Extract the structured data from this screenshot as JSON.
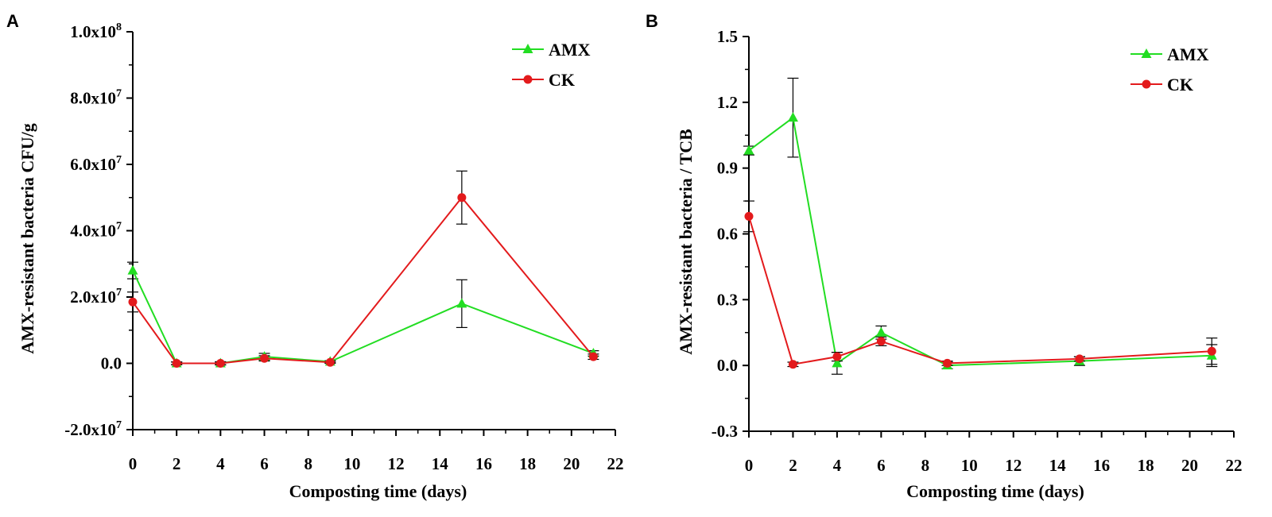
{
  "chart_data": [
    {
      "panel": "A",
      "type": "line",
      "title": "",
      "xlabel": "Composting time (days)",
      "ylabel": "AMX-resistant bacteria CFU/g",
      "xlim": [
        0,
        22
      ],
      "ylim": [
        -20000000,
        100000000
      ],
      "xticks": [
        0,
        2,
        4,
        6,
        8,
        10,
        12,
        14,
        16,
        18,
        20,
        22
      ],
      "xtick_labels": [
        "0",
        "2",
        "4",
        "6",
        "8",
        "10",
        "12",
        "14",
        "16",
        "18",
        "20",
        "22"
      ],
      "yticks": [
        -20000000,
        0,
        20000000,
        40000000,
        60000000,
        80000000,
        100000000
      ],
      "ytick_labels": [
        "-2.0x10",
        "0.0",
        "2.0x10",
        "4.0x10",
        "6.0x10",
        "8.0x10",
        "1.0x10"
      ],
      "ytick_exponents": [
        "7",
        "",
        "7",
        "7",
        "7",
        "7",
        "8"
      ],
      "legend": "top-right",
      "x": [
        0,
        2,
        4,
        6,
        9,
        15,
        21
      ],
      "series": [
        {
          "name": "AMX",
          "color": "#22dd22",
          "marker": "triangle",
          "values": [
            28000000,
            0,
            0,
            2000000,
            500000,
            18000000,
            3000000
          ],
          "errors": [
            2500000,
            400000,
            400000,
            1000000,
            300000,
            7200000,
            800000
          ]
        },
        {
          "name": "CK",
          "color": "#e31a1c",
          "marker": "circle",
          "values": [
            18500000,
            0,
            0,
            1500000,
            300000,
            50000000,
            2000000
          ],
          "errors": [
            3000000,
            400000,
            500000,
            800000,
            300000,
            8000000,
            800000
          ]
        }
      ]
    },
    {
      "panel": "B",
      "type": "line",
      "title": "",
      "xlabel": "Composting time (days)",
      "ylabel": "AMX-resistant bacteria / TCB",
      "xlim": [
        0,
        22
      ],
      "ylim": [
        -0.3,
        1.5
      ],
      "xticks": [
        0,
        2,
        4,
        6,
        8,
        10,
        12,
        14,
        16,
        18,
        20,
        22
      ],
      "xtick_labels": [
        "0",
        "2",
        "4",
        "6",
        "8",
        "10",
        "12",
        "14",
        "16",
        "18",
        "20",
        "22"
      ],
      "yticks": [
        -0.3,
        0.0,
        0.3,
        0.6,
        0.9,
        1.2,
        1.5
      ],
      "ytick_labels": [
        "-0.3",
        "0.0",
        "0.3",
        "0.6",
        "0.9",
        "1.2",
        "1.5"
      ],
      "ytick_exponents": [
        "",
        "",
        "",
        "",
        "",
        "",
        ""
      ],
      "legend": "top-right",
      "x": [
        0,
        2,
        4,
        6,
        9,
        15,
        21
      ],
      "series": [
        {
          "name": "AMX",
          "color": "#22dd22",
          "marker": "triangle",
          "values": [
            0.98,
            1.13,
            0.01,
            0.15,
            0.0,
            0.02,
            0.045
          ],
          "errors": [
            0.02,
            0.18,
            0.05,
            0.03,
            0.015,
            0.02,
            0.05
          ]
        },
        {
          "name": "CK",
          "color": "#e31a1c",
          "marker": "circle",
          "values": [
            0.68,
            0.005,
            0.04,
            0.11,
            0.01,
            0.03,
            0.065
          ],
          "errors": [
            0.07,
            0.01,
            0.02,
            0.02,
            0.01,
            0.01,
            0.06
          ]
        }
      ]
    }
  ]
}
